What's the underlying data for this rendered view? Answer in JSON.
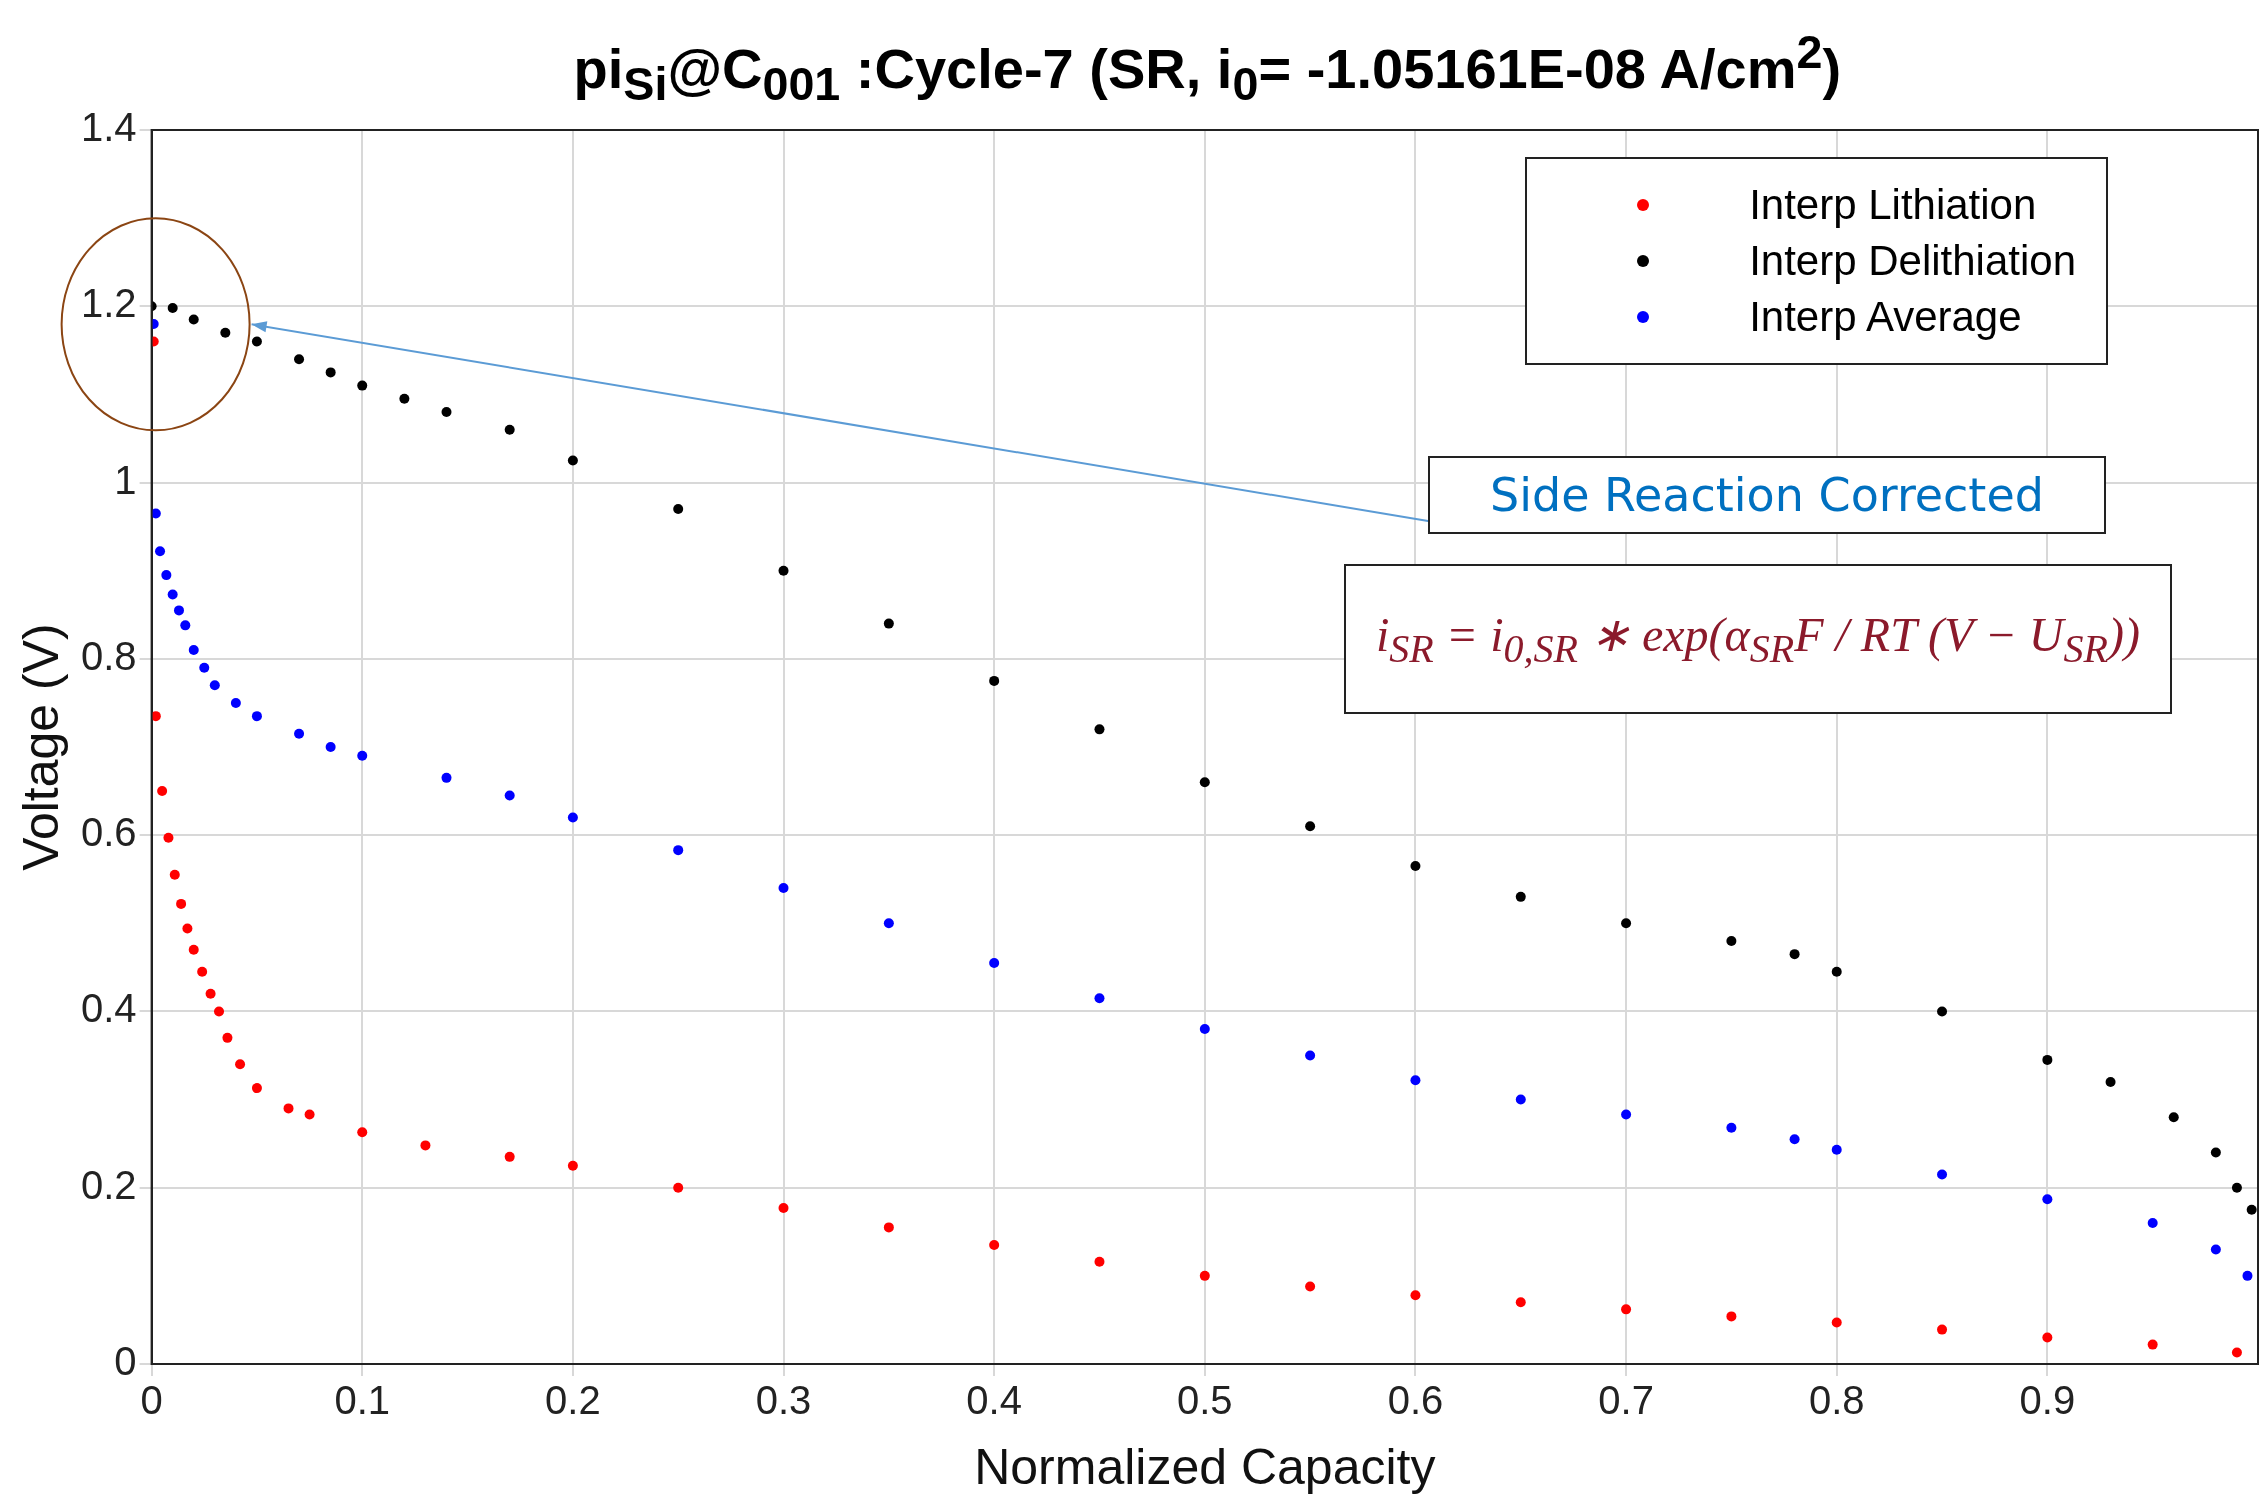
{
  "chart_data": {
    "type": "scatter",
    "title": "pi$_{Si}$@C$_{001}$ :Cycle-7 (SR, i$_{0}$= -1.05161E-08 A/cm$^{2}$)",
    "xlabel": "Normalized Capacity",
    "ylabel": "Voltage (V)",
    "xlim": [
      0,
      1
    ],
    "xticks": [
      0,
      0.1,
      0.2,
      0.3,
      0.4,
      0.5,
      0.6,
      0.7,
      0.8,
      0.9
    ],
    "ylim": [
      0,
      1.4
    ],
    "yticks": [
      0,
      0.2,
      0.4,
      0.6,
      0.8,
      1,
      1.2,
      1.4
    ],
    "grid": true,
    "legend": "top right",
    "marker": "circle",
    "annotations": [
      "Side Reaction Corrected",
      "i$_{SR}$ = i$_{0,SR}$ ∗ exp(α$_{SR}$F / RT (V − U$_{SR}$))"
    ],
    "series": [
      {
        "name": "Interp Lithiation",
        "color": "#ff0000",
        "x": [
          0.001,
          0.002,
          0.005,
          0.008,
          0.011,
          0.014,
          0.017,
          0.02,
          0.024,
          0.028,
          0.032,
          0.036,
          0.042,
          0.05,
          0.065,
          0.075,
          0.1,
          0.13,
          0.17,
          0.2,
          0.25,
          0.3,
          0.35,
          0.4,
          0.45,
          0.5,
          0.55,
          0.6,
          0.65,
          0.7,
          0.75,
          0.8,
          0.85,
          0.9,
          0.95,
          0.99
        ],
        "values": [
          1.16,
          0.735,
          0.65,
          0.597,
          0.555,
          0.522,
          0.494,
          0.47,
          0.445,
          0.42,
          0.4,
          0.37,
          0.34,
          0.313,
          0.29,
          0.283,
          0.263,
          0.248,
          0.235,
          0.225,
          0.2,
          0.177,
          0.155,
          0.135,
          0.116,
          0.1,
          0.088,
          0.078,
          0.07,
          0.062,
          0.054,
          0.047,
          0.039,
          0.03,
          0.022,
          0.013
        ]
      },
      {
        "name": "Interp Delithiation",
        "color": "#000000",
        "x": [
          0,
          0.01,
          0.02,
          0.035,
          0.05,
          0.07,
          0.085,
          0.1,
          0.12,
          0.14,
          0.17,
          0.2,
          0.25,
          0.3,
          0.35,
          0.4,
          0.45,
          0.5,
          0.55,
          0.6,
          0.65,
          0.7,
          0.75,
          0.78,
          0.8,
          0.85,
          0.9,
          0.93,
          0.96,
          0.98,
          0.99,
          0.997
        ],
        "values": [
          1.2,
          1.198,
          1.185,
          1.17,
          1.16,
          1.14,
          1.125,
          1.11,
          1.095,
          1.08,
          1.06,
          1.025,
          0.97,
          0.9,
          0.84,
          0.775,
          0.72,
          0.66,
          0.61,
          0.565,
          0.53,
          0.5,
          0.48,
          0.465,
          0.445,
          0.4,
          0.345,
          0.32,
          0.28,
          0.24,
          0.2,
          0.175
        ]
      },
      {
        "name": "Interp Average",
        "color": "#0000ff",
        "x": [
          0.001,
          0.002,
          0.004,
          0.007,
          0.01,
          0.013,
          0.016,
          0.02,
          0.025,
          0.03,
          0.04,
          0.05,
          0.07,
          0.085,
          0.1,
          0.14,
          0.17,
          0.2,
          0.25,
          0.3,
          0.35,
          0.4,
          0.45,
          0.5,
          0.55,
          0.6,
          0.65,
          0.7,
          0.75,
          0.78,
          0.8,
          0.85,
          0.9,
          0.95,
          0.98,
          0.995
        ],
        "values": [
          1.18,
          0.965,
          0.922,
          0.895,
          0.873,
          0.855,
          0.838,
          0.81,
          0.79,
          0.77,
          0.75,
          0.735,
          0.715,
          0.7,
          0.69,
          0.665,
          0.645,
          0.62,
          0.583,
          0.54,
          0.5,
          0.455,
          0.415,
          0.38,
          0.35,
          0.322,
          0.3,
          0.283,
          0.268,
          0.255,
          0.243,
          0.215,
          0.187,
          0.16,
          0.13,
          0.1
        ]
      }
    ]
  }
}
